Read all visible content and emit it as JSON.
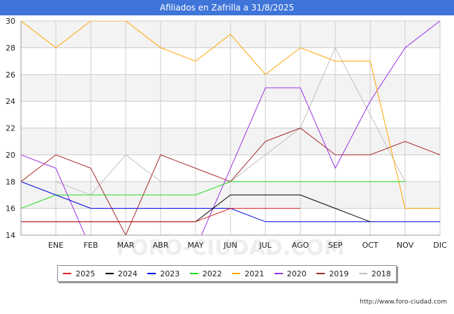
{
  "title": "Afiliados en Zafrilla a 31/8/2025",
  "source": "http://www.foro-ciudad.com",
  "watermark": "FORO-CIUDAD.COM",
  "colors": {
    "title_bg": "#3f74d8",
    "band": "#f3f3f3",
    "grid": "#cccccc"
  },
  "chart_data": {
    "type": "line",
    "title": "Afiliados en Zafrilla a 31/8/2025",
    "categories": [
      "",
      "ENE",
      "FEB",
      "MAR",
      "ABR",
      "MAY",
      "JUN",
      "JUL",
      "AGO",
      "SEP",
      "OCT",
      "NOV",
      "DIC"
    ],
    "ylim": [
      14,
      30
    ],
    "yticks": [
      14,
      16,
      18,
      20,
      22,
      24,
      26,
      28,
      30
    ],
    "grid": true,
    "legend_position": "bottom",
    "series": [
      {
        "name": "2025",
        "color": "#dd2222",
        "values": [
          15,
          15,
          15,
          15,
          15,
          15,
          16,
          16,
          16,
          null,
          null,
          null,
          null
        ]
      },
      {
        "name": "2024",
        "color": "#000000",
        "values": [
          15,
          15,
          15,
          15,
          15,
          15,
          17,
          17,
          17,
          16,
          15,
          null,
          null
        ]
      },
      {
        "name": "2023",
        "color": "#0000dd",
        "values": [
          18,
          17,
          16,
          16,
          16,
          16,
          16,
          15,
          15,
          15,
          15,
          15,
          15
        ]
      },
      {
        "name": "2022",
        "color": "#22dd22",
        "values": [
          16,
          17,
          17,
          17,
          17,
          17,
          18,
          18,
          18,
          18,
          18,
          18,
          null
        ]
      },
      {
        "name": "2021",
        "color": "#ffa500",
        "values": [
          30,
          28,
          30,
          30,
          28,
          27,
          29,
          26,
          28,
          27,
          27,
          16,
          16
        ]
      },
      {
        "name": "2020",
        "color": "#9b30e8",
        "values": [
          20,
          19,
          13,
          13,
          13,
          13,
          19,
          25,
          25,
          19,
          24,
          28,
          30
        ]
      },
      {
        "name": "2019",
        "color": "#a52a2a",
        "values": [
          18,
          20,
          19,
          14,
          20,
          19,
          18,
          21,
          22,
          20,
          20,
          21,
          20
        ]
      },
      {
        "name": "2018",
        "color": "#c0c0c0",
        "values": [
          null,
          18,
          17,
          20,
          18,
          18,
          18,
          20,
          22,
          28,
          23,
          18,
          null
        ]
      }
    ]
  }
}
